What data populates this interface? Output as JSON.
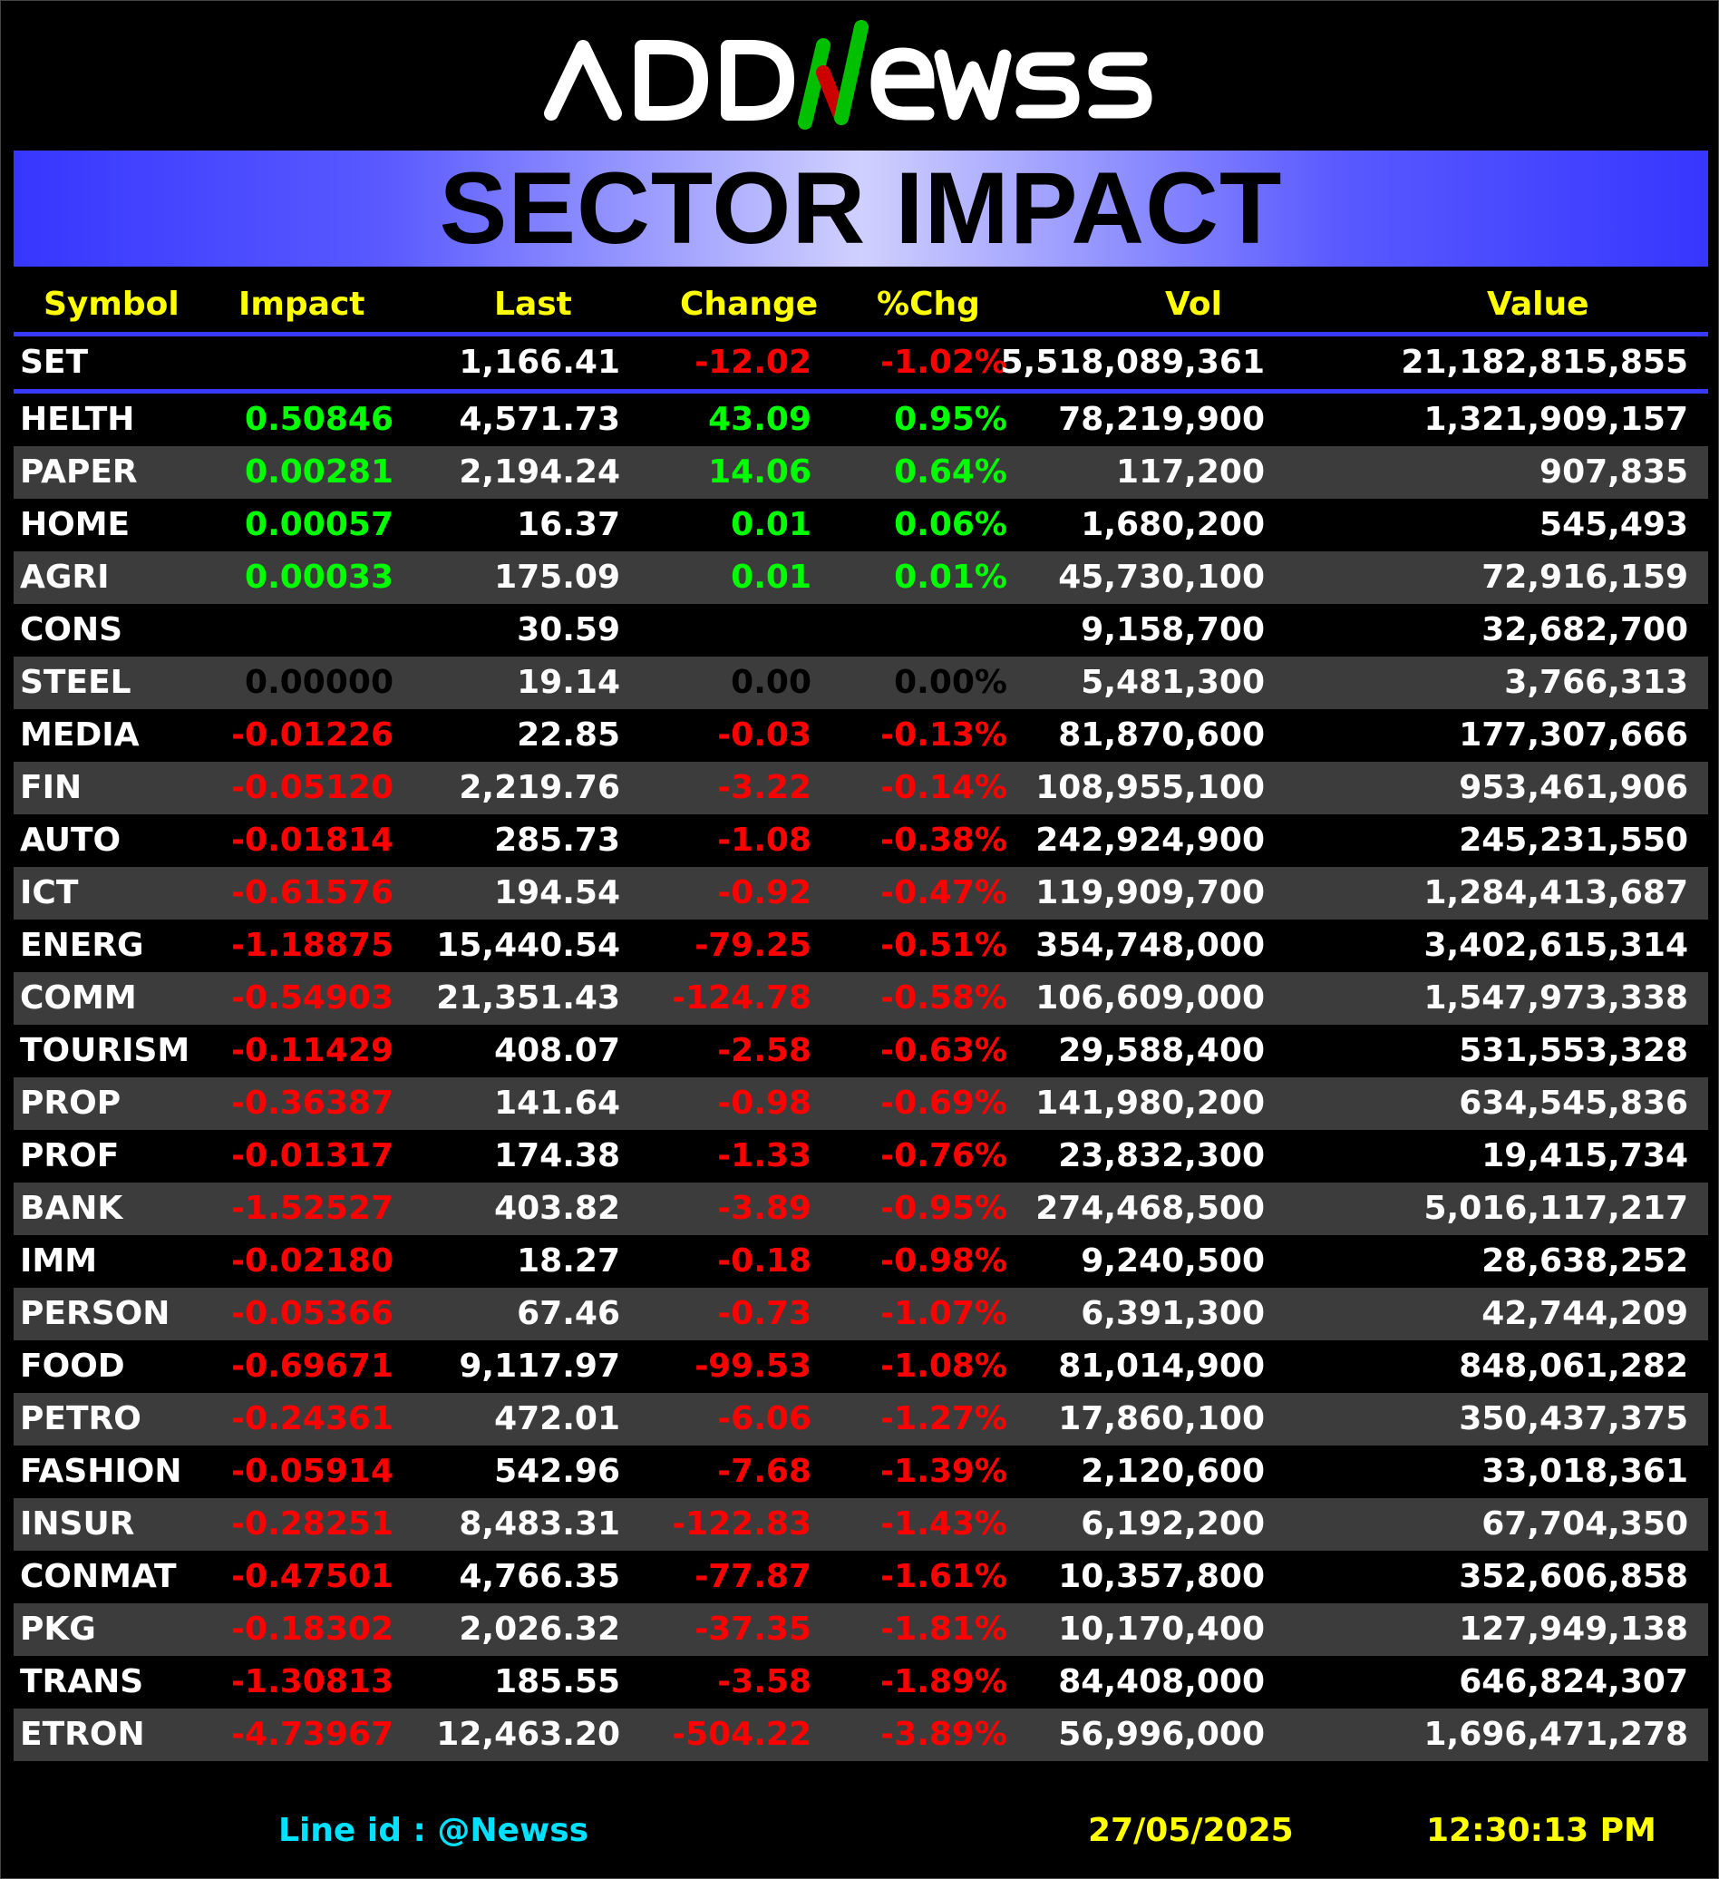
{
  "logo": {
    "text": "ADDNewss"
  },
  "banner": {
    "title": "SECTOR IMPACT"
  },
  "table": {
    "headers": {
      "symbol": "Symbol",
      "impact": "Impact",
      "last": "Last",
      "change": "Change",
      "pct": "%Chg",
      "vol": "Vol",
      "value": "Value"
    },
    "index_row": {
      "symbol": "SET",
      "impact": "",
      "last": "1,166.41",
      "change": "-12.02",
      "pct": "-1.02%",
      "vol": "5,518,089,361",
      "value": "21,182,815,855"
    },
    "rows": [
      {
        "symbol": "HELTH",
        "impact": "0.50846",
        "last": "4,571.73",
        "change": "43.09",
        "pct": "0.95%",
        "vol": "78,219,900",
        "value": "1,321,909,157",
        "dir": "pos"
      },
      {
        "symbol": "PAPER",
        "impact": "0.00281",
        "last": "2,194.24",
        "change": "14.06",
        "pct": "0.64%",
        "vol": "117,200",
        "value": "907,835",
        "dir": "pos"
      },
      {
        "symbol": "HOME",
        "impact": "0.00057",
        "last": "16.37",
        "change": "0.01",
        "pct": "0.06%",
        "vol": "1,680,200",
        "value": "545,493",
        "dir": "pos"
      },
      {
        "symbol": "AGRI",
        "impact": "0.00033",
        "last": "175.09",
        "change": "0.01",
        "pct": "0.01%",
        "vol": "45,730,100",
        "value": "72,916,159",
        "dir": "pos"
      },
      {
        "symbol": "CONS",
        "impact": "",
        "last": "30.59",
        "change": "",
        "pct": "",
        "vol": "9,158,700",
        "value": "32,682,700",
        "dir": "neutral"
      },
      {
        "symbol": "STEEL",
        "impact": "0.00000",
        "last": "19.14",
        "change": "0.00",
        "pct": "0.00%",
        "vol": "5,481,300",
        "value": "3,766,313",
        "dir": "zero"
      },
      {
        "symbol": "MEDIA",
        "impact": "-0.01226",
        "last": "22.85",
        "change": "-0.03",
        "pct": "-0.13%",
        "vol": "81,870,600",
        "value": "177,307,666",
        "dir": "neg"
      },
      {
        "symbol": "FIN",
        "impact": "-0.05120",
        "last": "2,219.76",
        "change": "-3.22",
        "pct": "-0.14%",
        "vol": "108,955,100",
        "value": "953,461,906",
        "dir": "neg"
      },
      {
        "symbol": "AUTO",
        "impact": "-0.01814",
        "last": "285.73",
        "change": "-1.08",
        "pct": "-0.38%",
        "vol": "242,924,900",
        "value": "245,231,550",
        "dir": "neg"
      },
      {
        "symbol": "ICT",
        "impact": "-0.61576",
        "last": "194.54",
        "change": "-0.92",
        "pct": "-0.47%",
        "vol": "119,909,700",
        "value": "1,284,413,687",
        "dir": "neg"
      },
      {
        "symbol": "ENERG",
        "impact": "-1.18875",
        "last": "15,440.54",
        "change": "-79.25",
        "pct": "-0.51%",
        "vol": "354,748,000",
        "value": "3,402,615,314",
        "dir": "neg"
      },
      {
        "symbol": "COMM",
        "impact": "-0.54903",
        "last": "21,351.43",
        "change": "-124.78",
        "pct": "-0.58%",
        "vol": "106,609,000",
        "value": "1,547,973,338",
        "dir": "neg"
      },
      {
        "symbol": "TOURISM",
        "impact": "-0.11429",
        "last": "408.07",
        "change": "-2.58",
        "pct": "-0.63%",
        "vol": "29,588,400",
        "value": "531,553,328",
        "dir": "neg"
      },
      {
        "symbol": "PROP",
        "impact": "-0.36387",
        "last": "141.64",
        "change": "-0.98",
        "pct": "-0.69%",
        "vol": "141,980,200",
        "value": "634,545,836",
        "dir": "neg"
      },
      {
        "symbol": "PROF",
        "impact": "-0.01317",
        "last": "174.38",
        "change": "-1.33",
        "pct": "-0.76%",
        "vol": "23,832,300",
        "value": "19,415,734",
        "dir": "neg"
      },
      {
        "symbol": "BANK",
        "impact": "-1.52527",
        "last": "403.82",
        "change": "-3.89",
        "pct": "-0.95%",
        "vol": "274,468,500",
        "value": "5,016,117,217",
        "dir": "neg"
      },
      {
        "symbol": "IMM",
        "impact": "-0.02180",
        "last": "18.27",
        "change": "-0.18",
        "pct": "-0.98%",
        "vol": "9,240,500",
        "value": "28,638,252",
        "dir": "neg"
      },
      {
        "symbol": "PERSON",
        "impact": "-0.05366",
        "last": "67.46",
        "change": "-0.73",
        "pct": "-1.07%",
        "vol": "6,391,300",
        "value": "42,744,209",
        "dir": "neg"
      },
      {
        "symbol": "FOOD",
        "impact": "-0.69671",
        "last": "9,117.97",
        "change": "-99.53",
        "pct": "-1.08%",
        "vol": "81,014,900",
        "value": "848,061,282",
        "dir": "neg"
      },
      {
        "symbol": "PETRO",
        "impact": "-0.24361",
        "last": "472.01",
        "change": "-6.06",
        "pct": "-1.27%",
        "vol": "17,860,100",
        "value": "350,437,375",
        "dir": "neg"
      },
      {
        "symbol": "FASHION",
        "impact": "-0.05914",
        "last": "542.96",
        "change": "-7.68",
        "pct": "-1.39%",
        "vol": "2,120,600",
        "value": "33,018,361",
        "dir": "neg"
      },
      {
        "symbol": "INSUR",
        "impact": "-0.28251",
        "last": "8,483.31",
        "change": "-122.83",
        "pct": "-1.43%",
        "vol": "6,192,200",
        "value": "67,704,350",
        "dir": "neg"
      },
      {
        "symbol": "CONMAT",
        "impact": "-0.47501",
        "last": "4,766.35",
        "change": "-77.87",
        "pct": "-1.61%",
        "vol": "10,357,800",
        "value": "352,606,858",
        "dir": "neg"
      },
      {
        "symbol": "PKG",
        "impact": "-0.18302",
        "last": "2,026.32",
        "change": "-37.35",
        "pct": "-1.81%",
        "vol": "10,170,400",
        "value": "127,949,138",
        "dir": "neg"
      },
      {
        "symbol": "TRANS",
        "impact": "-1.30813",
        "last": "185.55",
        "change": "-3.58",
        "pct": "-1.89%",
        "vol": "84,408,000",
        "value": "646,824,307",
        "dir": "neg"
      },
      {
        "symbol": "ETRON",
        "impact": "-4.73967",
        "last": "12,463.20",
        "change": "-504.22",
        "pct": "-3.89%",
        "vol": "56,996,000",
        "value": "1,696,471,278",
        "dir": "neg"
      }
    ]
  },
  "footer": {
    "line_id": "Line id  : @Newss",
    "date": "27/05/2025",
    "time": "12:30:13 PM"
  },
  "colors": {
    "background": "#000000",
    "header_text": "#ffff00",
    "positive": "#00ff00",
    "negative": "#ff0000",
    "banner_blue": "#3636ff",
    "separator": "#3a3aff",
    "alt_row": "#3c3c3c",
    "line_id": "#00e0ff"
  }
}
